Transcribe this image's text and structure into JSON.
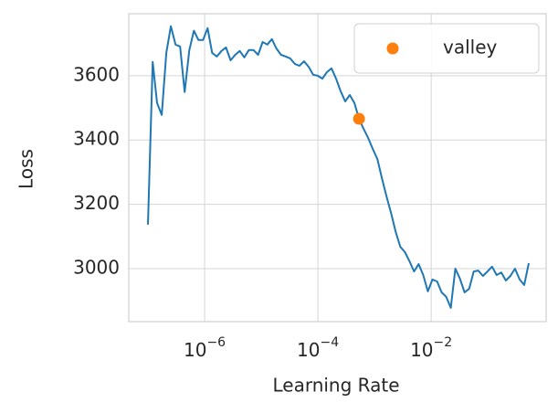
{
  "chart_data": {
    "type": "line",
    "xlabel": "Learning Rate",
    "ylabel": "Loss",
    "xscale": "log",
    "grid": true,
    "legend": "upper right",
    "x": [
      1e-07,
      1.21e-07,
      1.45e-07,
      1.75e-07,
      2.11e-07,
      2.54e-07,
      3.06e-07,
      3.69e-07,
      4.45e-07,
      5.36e-07,
      6.46e-07,
      7.78e-07,
      9.38e-07,
      1.13e-06,
      1.36e-06,
      1.64e-06,
      1.98e-06,
      2.38e-06,
      2.87e-06,
      3.46e-06,
      4.17e-06,
      5.02e-06,
      6.05e-06,
      7.3e-06,
      8.79e-06,
      1.06e-05,
      1.28e-05,
      1.54e-05,
      1.85e-05,
      2.23e-05,
      2.69e-05,
      3.24e-05,
      3.91e-05,
      4.71e-05,
      5.68e-05,
      6.84e-05,
      8.24e-05,
      9.93e-05,
      0.00012,
      0.000144,
      0.000174,
      0.000209,
      0.000252,
      0.000304,
      0.000366,
      0.000442,
      0.000532,
      0.000641,
      0.000773,
      0.000931,
      0.00112,
      0.00135,
      0.00163,
      0.00196,
      0.00237,
      0.00285,
      0.00344,
      0.00414,
      0.00499,
      0.00601,
      0.00724,
      0.00873,
      0.0105,
      0.0127,
      0.0153,
      0.0184,
      0.0222,
      0.0267,
      0.0322,
      0.0388,
      0.0468,
      0.0564,
      0.0679,
      0.0819,
      0.0986,
      0.119,
      0.143,
      0.173,
      0.208,
      0.251,
      0.302,
      0.364,
      0.439,
      0.528
    ],
    "series": [
      {
        "color": "#1f77b4",
        "values": [
          3137,
          3643,
          3515,
          3478,
          3671,
          3754,
          3697,
          3691,
          3549,
          3680,
          3740,
          3711,
          3711,
          3748,
          3671,
          3660,
          3677,
          3688,
          3648,
          3665,
          3677,
          3657,
          3680,
          3680,
          3665,
          3705,
          3697,
          3714,
          3685,
          3665,
          3660,
          3654,
          3637,
          3631,
          3645,
          3628,
          3603,
          3600,
          3591,
          3611,
          3623,
          3591,
          3552,
          3520,
          3540,
          3515,
          3466,
          3435,
          3406,
          3372,
          3341,
          3281,
          3224,
          3173,
          3113,
          3068,
          3051,
          3023,
          2991,
          3014,
          2980,
          2929,
          2966,
          2960,
          2926,
          2912,
          2878,
          3000,
          2969,
          2926,
          2937,
          2991,
          2994,
          2977,
          2991,
          3006,
          2980,
          2988,
          2963,
          2977,
          3000,
          2966,
          2949,
          3017
        ]
      }
    ],
    "markers": [
      {
        "name": "valley",
        "color": "#ff7f0e",
        "x": [
          0.000532
        ],
        "values": [
          3466
        ]
      }
    ],
    "xlim": [
      4.58e-08,
      1.07
    ],
    "ylim": [
      2835,
      3793
    ],
    "xticks": [
      {
        "value": 1e-06,
        "label": "10−6"
      },
      {
        "value": 0.0001,
        "label": "10−4"
      },
      {
        "value": 0.01,
        "label": "10−2"
      }
    ],
    "yticks": [
      3000,
      3200,
      3400,
      3600
    ]
  }
}
